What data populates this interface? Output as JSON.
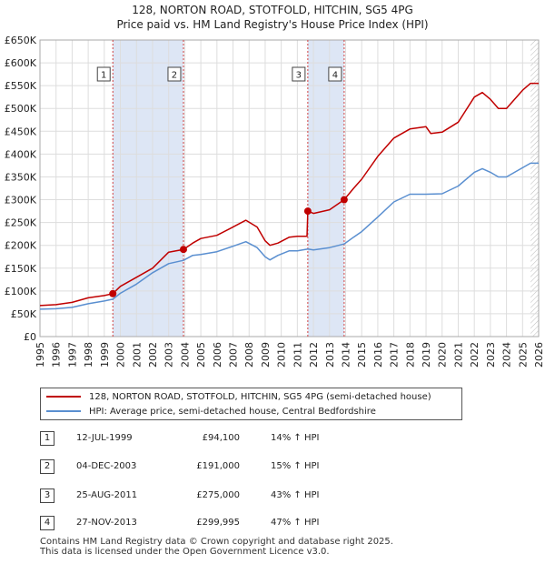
{
  "title": "128, NORTON ROAD, STOTFOLD, HITCHIN, SG5 4PG",
  "subtitle": "Price paid vs. HM Land Registry's House Price Index (HPI)",
  "colors": {
    "property": "#c00000",
    "hpi": "#5a8fd0",
    "shade": "#dde6f5",
    "grid": "#dddddd"
  },
  "chart_data": {
    "type": "line",
    "title": "128, NORTON ROAD, STOTFOLD, HITCHIN, SG5 4PG",
    "subtitle": "Price paid vs. HM Land Registry's House Price Index (HPI)",
    "xlim": [
      1995,
      2026
    ],
    "ylim": [
      0,
      650000
    ],
    "x_ticks": [
      "1995",
      "1996",
      "1997",
      "1998",
      "1999",
      "2000",
      "2001",
      "2002",
      "2003",
      "2004",
      "2005",
      "2006",
      "2007",
      "2008",
      "2009",
      "2010",
      "2011",
      "2012",
      "2013",
      "2014",
      "2015",
      "2016",
      "2017",
      "2018",
      "2019",
      "2020",
      "2021",
      "2022",
      "2023",
      "2024",
      "2025",
      "2026"
    ],
    "y_ticks": [
      {
        "value": 0,
        "label": "£0"
      },
      {
        "value": 50000,
        "label": "£50K"
      },
      {
        "value": 100000,
        "label": "£100K"
      },
      {
        "value": 150000,
        "label": "£150K"
      },
      {
        "value": 200000,
        "label": "£200K"
      },
      {
        "value": 250000,
        "label": "£250K"
      },
      {
        "value": 300000,
        "label": "£300K"
      },
      {
        "value": 350000,
        "label": "£350K"
      },
      {
        "value": 400000,
        "label": "£400K"
      },
      {
        "value": 450000,
        "label": "£450K"
      },
      {
        "value": 500000,
        "label": "£500K"
      },
      {
        "value": 550000,
        "label": "£550K"
      },
      {
        "value": 600000,
        "label": "£600K"
      },
      {
        "value": 650000,
        "label": "£650K"
      }
    ],
    "ownership_periods": [
      [
        1999.53,
        2003.92
      ],
      [
        2011.65,
        2013.91
      ]
    ],
    "forecast_from": 2025.5,
    "series": [
      {
        "name": "128, NORTON ROAD, STOTFOLD, HITCHIN, SG5 4PG (semi-detached house)",
        "color": "#c00000",
        "x": [
          1995.0,
          1996.0,
          1997.0,
          1998.0,
          1999.0,
          1999.53,
          2000.0,
          2001.0,
          2002.0,
          2003.0,
          2003.92,
          2004.5,
          2005.0,
          2006.0,
          2007.0,
          2007.8,
          2008.5,
          2009.0,
          2009.3,
          2009.8,
          2010.5,
          2011.0,
          2011.6,
          2011.65,
          2012.0,
          2013.0,
          2013.91,
          2014.5,
          2015.0,
          2016.0,
          2017.0,
          2018.0,
          2019.0,
          2019.3,
          2020.0,
          2021.0,
          2022.0,
          2022.5,
          2023.0,
          2023.5,
          2024.0,
          2025.0,
          2025.5,
          2026.0
        ],
        "y": [
          68000,
          70000,
          75000,
          85000,
          90000,
          94100,
          110000,
          130000,
          150000,
          185000,
          191000,
          205000,
          215000,
          222000,
          240000,
          255000,
          240000,
          210000,
          200000,
          205000,
          218000,
          220000,
          220000,
          275000,
          270000,
          278000,
          299995,
          325000,
          345000,
          395000,
          435000,
          455000,
          460000,
          445000,
          448000,
          470000,
          525000,
          535000,
          520000,
          500000,
          500000,
          540000,
          555000,
          555000
        ]
      },
      {
        "name": "HPI: Average price, semi-detached house, Central Bedfordshire",
        "color": "#5a8fd0",
        "x": [
          1995.0,
          1996.0,
          1997.0,
          1998.0,
          1999.0,
          1999.53,
          2000.0,
          2001.0,
          2002.0,
          2003.0,
          2003.92,
          2004.5,
          2005.0,
          2006.0,
          2007.0,
          2007.8,
          2008.5,
          2009.0,
          2009.3,
          2009.8,
          2010.5,
          2011.0,
          2011.65,
          2012.0,
          2013.0,
          2013.91,
          2014.5,
          2015.0,
          2016.0,
          2017.0,
          2018.0,
          2019.0,
          2020.0,
          2021.0,
          2022.0,
          2022.5,
          2023.0,
          2023.5,
          2024.0,
          2025.0,
          2025.5,
          2026.0
        ],
        "y": [
          60000,
          61000,
          64000,
          72000,
          78000,
          82000,
          95000,
          115000,
          140000,
          160000,
          167000,
          178000,
          180000,
          186000,
          198000,
          208000,
          195000,
          175000,
          168000,
          178000,
          188000,
          188000,
          192000,
          190000,
          195000,
          203000,
          218000,
          230000,
          262000,
          295000,
          312000,
          312000,
          313000,
          330000,
          360000,
          368000,
          360000,
          350000,
          350000,
          370000,
          380000,
          380000
        ]
      }
    ],
    "sales": [
      {
        "label": "1",
        "x": 1999.53,
        "y": 94100
      },
      {
        "label": "2",
        "x": 2003.92,
        "y": 191000
      },
      {
        "label": "3",
        "x": 2011.65,
        "y": 275000
      },
      {
        "label": "4",
        "x": 2013.91,
        "y": 299995
      }
    ]
  },
  "legend": [
    {
      "label": "128, NORTON ROAD, STOTFOLD, HITCHIN, SG5 4PG (semi-detached house)",
      "color": "#c00000"
    },
    {
      "label": "HPI: Average price, semi-detached house, Central Bedfordshire",
      "color": "#5a8fd0"
    }
  ],
  "sales_table": [
    {
      "num": "1",
      "date": "12-JUL-1999",
      "price": "£94,100",
      "hpi": "14% ↑ HPI"
    },
    {
      "num": "2",
      "date": "04-DEC-2003",
      "price": "£191,000",
      "hpi": "15% ↑ HPI"
    },
    {
      "num": "3",
      "date": "25-AUG-2011",
      "price": "£275,000",
      "hpi": "43% ↑ HPI"
    },
    {
      "num": "4",
      "date": "27-NOV-2013",
      "price": "£299,995",
      "hpi": "47% ↑ HPI"
    }
  ],
  "footer": {
    "line1": "Contains HM Land Registry data © Crown copyright and database right 2025.",
    "line2": "This data is licensed under the Open Government Licence v3.0."
  }
}
